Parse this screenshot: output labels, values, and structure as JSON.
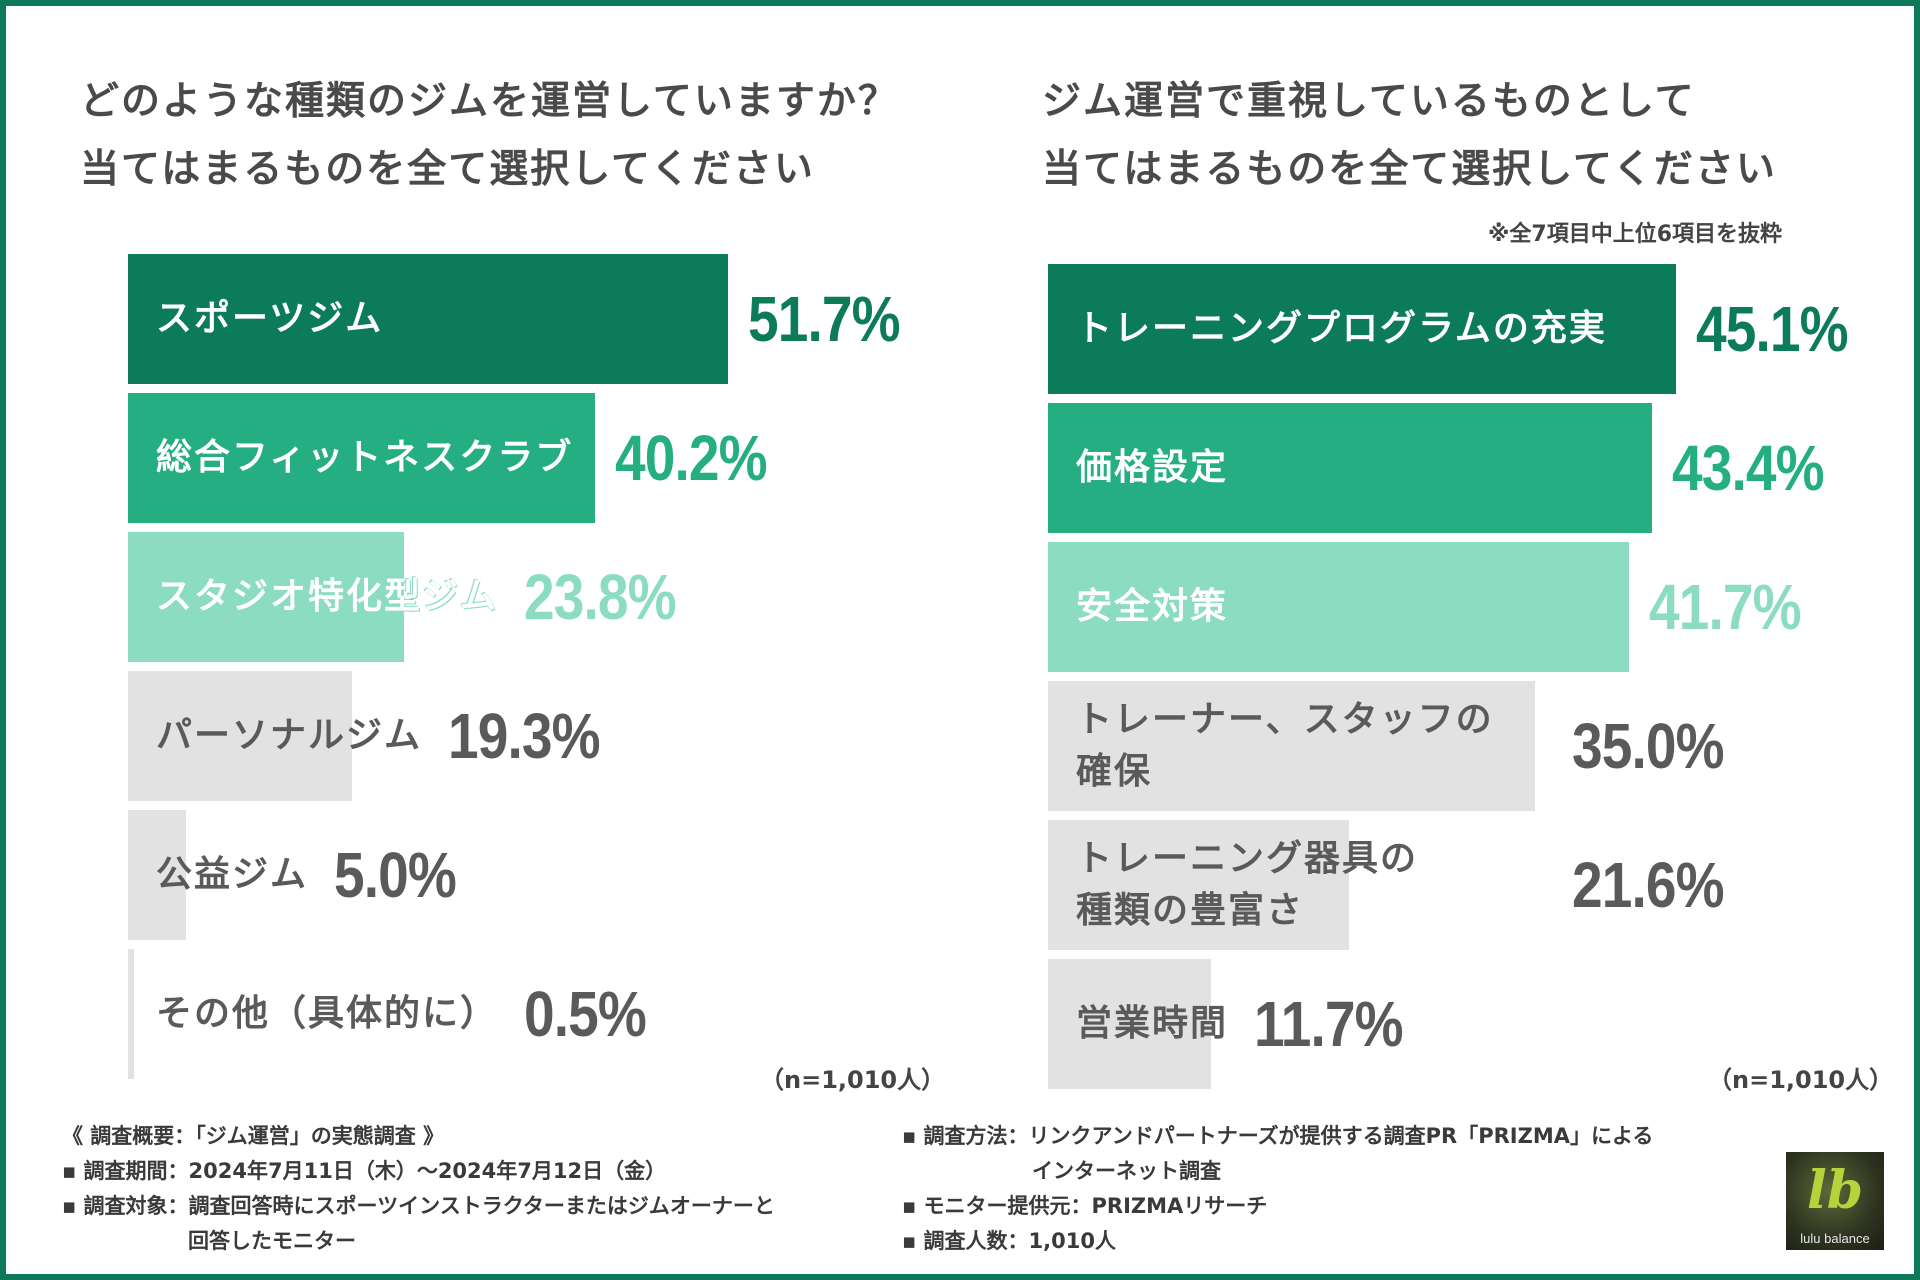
{
  "colors": {
    "dark_green": "#0c7b59",
    "mid_green": "#24ae82",
    "light_green": "#8bdcc0",
    "grey_bar": "#e2e2e2",
    "grey_text": "#5a5a5a",
    "frame": "#0a7a5a"
  },
  "left": {
    "title_lines": [
      "どのような種類のジムを運営していますか？",
      "当てはまるものを全て選択してください"
    ],
    "sample": "（n=1,010人）"
  },
  "right": {
    "title_lines": [
      "ジム運営で重視しているものとして",
      "当てはまるものを全て選択してください"
    ],
    "note": "※全7項目中上位6項目を抜粋",
    "sample": "（n=1,010人）"
  },
  "chart_data": [
    {
      "type": "bar",
      "orientation": "horizontal",
      "title": "どのような種類のジムを運営していますか？当てはまるものを全て選択してください",
      "categories": [
        "スポーツジム",
        "総合フィットネスクラブ",
        "スタジオ特化型ジム",
        "パーソナルジム",
        "公益ジム",
        "その他（具体的に）"
      ],
      "values": [
        51.7,
        40.2,
        23.8,
        19.3,
        5.0,
        0.5
      ],
      "value_labels": [
        "51.7%",
        "40.2%",
        "23.8%",
        "19.3%",
        "5.0%",
        "0.5%"
      ],
      "unit": "%",
      "xlim": [
        0,
        51.7
      ],
      "bar_styles": [
        "dark",
        "mid",
        "light",
        "grey",
        "grey",
        "grey"
      ]
    },
    {
      "type": "bar",
      "orientation": "horizontal",
      "title": "ジム運営で重視しているものとして当てはまるものを全て選択してください",
      "categories": [
        "トレーニングプログラムの充実",
        "価格設定",
        "安全対策",
        "トレーナー、スタッフの確保",
        "トレーニング器具の種類の豊富さ",
        "営業時間"
      ],
      "category_lines": [
        [
          "トレーニングプログラムの充実"
        ],
        [
          "価格設定"
        ],
        [
          "安全対策"
        ],
        [
          "トレーナー、スタッフの",
          "確保"
        ],
        [
          "トレーニング器具の",
          "種類の豊富さ"
        ],
        [
          "営業時間"
        ]
      ],
      "values": [
        45.1,
        43.4,
        41.7,
        35.0,
        21.6,
        11.7
      ],
      "value_labels": [
        "45.1%",
        "43.4%",
        "41.7%",
        "35.0%",
        "21.6%",
        "11.7%"
      ],
      "unit": "%",
      "xlim": [
        0,
        45.1
      ],
      "bar_styles": [
        "dark",
        "mid",
        "light",
        "grey",
        "grey",
        "grey"
      ]
    }
  ],
  "footer": {
    "left": [
      "《 調査概要：「ジム運営」の実態調査 》",
      "▪ 調査期間：2024年7月11日（木）〜2024年7月12日（金）",
      "▪ 調査対象：調査回答時にスポーツインストラクターまたはジムオーナーと",
      "回答したモニター"
    ],
    "right": [
      "▪ 調査方法：リンクアンドパートナーズが提供する調査PR「PRIZMA」による",
      "インターネット調査",
      "▪ モニター提供元：PRIZMAリサーチ",
      "▪ 調査人数：1,010人"
    ]
  },
  "logo": {
    "mark": "lb",
    "text": "lulu balance"
  }
}
